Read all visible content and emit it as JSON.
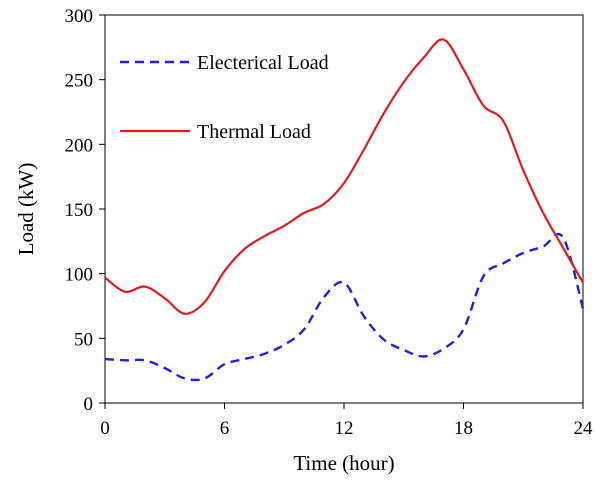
{
  "chart_data": {
    "type": "line",
    "title": "",
    "xlabel": "Time (hour)",
    "ylabel": "Load (kW)",
    "xlim": [
      0,
      24
    ],
    "ylim": [
      0,
      300
    ],
    "xticks": [
      0,
      6,
      12,
      18,
      24
    ],
    "yticks": [
      0,
      50,
      100,
      150,
      200,
      250,
      300
    ],
    "grid": false,
    "legend_position": "top-left",
    "series": [
      {
        "name": "Electerical Load",
        "color": "#1f1fe6",
        "style": "dashed",
        "x": [
          0,
          1,
          2,
          3,
          4,
          5,
          6,
          7,
          8,
          9,
          10,
          11,
          12,
          13,
          14,
          15,
          16,
          17,
          18,
          19,
          20,
          21,
          22,
          23,
          24
        ],
        "y": [
          34,
          33,
          33,
          27,
          19,
          19,
          30,
          34,
          38,
          45,
          57,
          82,
          93,
          67,
          49,
          41,
          36,
          42,
          57,
          98,
          108,
          116,
          121,
          128,
          73
        ]
      },
      {
        "name": "Thermal Load",
        "color": "#e31a1c",
        "style": "solid",
        "x": [
          0,
          1,
          2,
          3,
          4,
          5,
          6,
          7,
          8,
          9,
          10,
          11,
          12,
          13,
          14,
          15,
          16,
          17,
          18,
          19,
          20,
          21,
          22,
          23,
          24
        ],
        "y": [
          97,
          86,
          90,
          81,
          69,
          78,
          102,
          119,
          129,
          137,
          147,
          154,
          170,
          196,
          224,
          248,
          267,
          281,
          258,
          230,
          218,
          180,
          147,
          120,
          93
        ]
      }
    ]
  }
}
